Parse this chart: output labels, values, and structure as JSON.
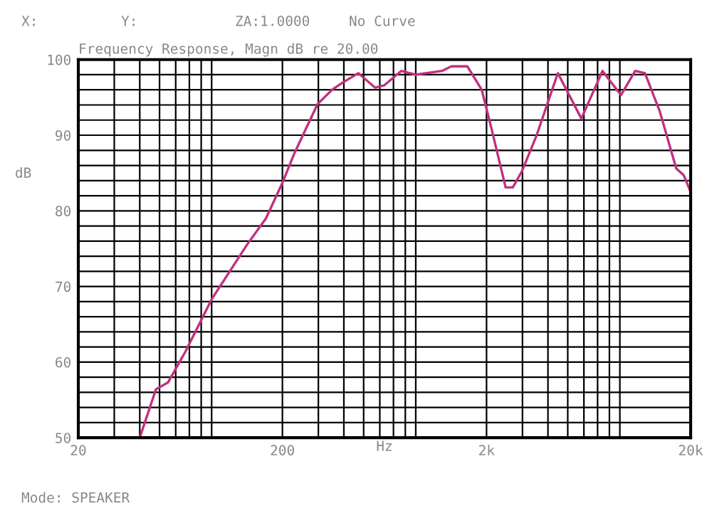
{
  "chart_data": {
    "type": "line",
    "title": "Frequency Response, Magn dB re 20.00",
    "xlabel": "Hz",
    "ylabel": "dB",
    "annotations": [
      "X:",
      "Y:",
      "ZA:1.0000",
      "No Curve",
      "Mode: SPEAKER"
    ],
    "log": "x",
    "grid": true,
    "marker": "none",
    "line_style": "solid",
    "xlim": [
      20,
      20000
    ],
    "ylim": [
      50,
      100
    ],
    "xticks": [
      20,
      {
        "value": 30,
        "label": null
      },
      {
        "value": 40,
        "label": null
      },
      {
        "value": 50,
        "label": null
      },
      {
        "value": 60,
        "label": null
      },
      {
        "value": 70,
        "label": null
      },
      {
        "value": 80,
        "label": null
      },
      {
        "value": 90,
        "label": null
      },
      200,
      {
        "value": 300,
        "label": null
      },
      {
        "value": 400,
        "label": null
      },
      {
        "value": 500,
        "label": null
      },
      {
        "value": 600,
        "label": null
      },
      {
        "value": 700,
        "label": null
      },
      {
        "value": 800,
        "label": null
      },
      {
        "value": 900,
        "label": null
      },
      {
        "value": 2000,
        "label": "2k"
      },
      {
        "value": 3000,
        "label": null
      },
      {
        "value": 4000,
        "label": null
      },
      {
        "value": 5000,
        "label": null
      },
      {
        "value": 6000,
        "label": null
      },
      {
        "value": 7000,
        "label": null
      },
      {
        "value": 8000,
        "label": null
      },
      {
        "value": 9000,
        "label": null
      },
      {
        "value": 20000,
        "label": "20k"
      }
    ],
    "yticks": [
      50,
      {
        "value": 52,
        "label": null
      },
      {
        "value": 54,
        "label": null
      },
      {
        "value": 56,
        "label": null
      },
      {
        "value": 58,
        "label": null
      },
      60,
      {
        "value": 62,
        "label": null
      },
      {
        "value": 64,
        "label": null
      },
      {
        "value": 66,
        "label": null
      },
      {
        "value": 68,
        "label": null
      },
      70,
      {
        "value": 72,
        "label": null
      },
      {
        "value": 74,
        "label": null
      },
      {
        "value": 76,
        "label": null
      },
      {
        "value": 78,
        "label": null
      },
      80,
      {
        "value": 82,
        "label": null
      },
      {
        "value": 84,
        "label": null
      },
      {
        "value": 86,
        "label": null
      },
      {
        "value": 88,
        "label": null
      },
      90,
      {
        "value": 92,
        "label": null
      },
      {
        "value": 94,
        "label": null
      },
      {
        "value": 96,
        "label": null
      },
      {
        "value": 98,
        "label": null
      },
      100
    ],
    "series": [
      {
        "color": "#c0307f",
        "x": [
          40,
          48,
          55,
          67,
          90,
          134,
          166,
          200,
          228,
          297,
          350,
          392,
          471,
          568,
          632,
          764,
          897,
          1210,
          1345,
          1612,
          1895,
          2110,
          2480,
          2690,
          2990,
          3520,
          4470,
          5830,
          7400,
          9120,
          10700,
          11950,
          14100,
          17000,
          18500,
          20000
        ],
        "values": [
          50,
          56.4,
          57.3,
          61.4,
          68.3,
          75.5,
          79,
          83.7,
          87.5,
          94.1,
          96,
          96.9,
          98.2,
          96.3,
          96.6,
          98.5,
          98,
          98.5,
          99.1,
          99.1,
          96,
          91,
          83.1,
          83.1,
          85.3,
          90,
          98.2,
          92.2,
          98.5,
          95.3,
          98.5,
          98.2,
          93.2,
          85.6,
          84.7,
          82.5
        ]
      }
    ]
  }
}
